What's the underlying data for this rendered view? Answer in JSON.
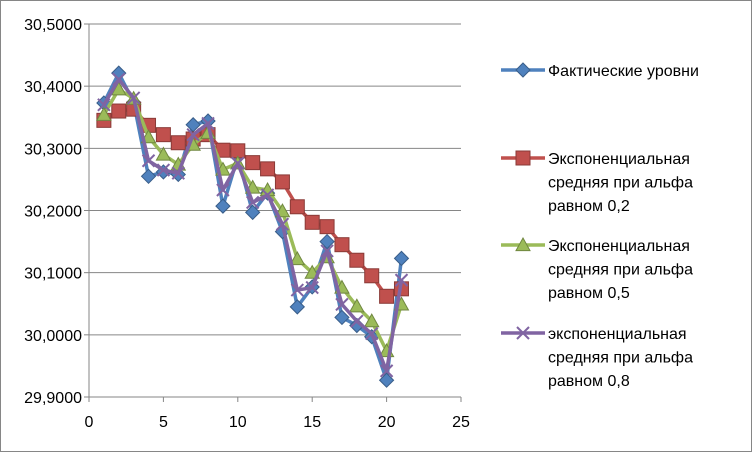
{
  "chart_data": {
    "type": "line",
    "xlim": [
      0,
      25
    ],
    "ylim": [
      29.9,
      30.5
    ],
    "x_ticks": [
      "0",
      "5",
      "10",
      "15",
      "20",
      "25"
    ],
    "y_ticks": [
      "29,9000",
      "30,0000",
      "30,1000",
      "30,2000",
      "30,3000",
      "30,4000",
      "30,5000"
    ],
    "grid": "horizontal",
    "legend_position": "right",
    "x": [
      1,
      2,
      3,
      4,
      5,
      6,
      7,
      8,
      9,
      10,
      11,
      12,
      13,
      14,
      15,
      16,
      17,
      18,
      19,
      20,
      21
    ],
    "series": [
      {
        "name": "Фактические уровни",
        "legend_lines": [
          "Фактические уровни"
        ],
        "color": "#4F81BD",
        "marker": "diamond",
        "values": [
          30.373,
          30.421,
          30.374,
          30.255,
          30.262,
          30.258,
          30.338,
          30.344,
          30.207,
          30.286,
          30.197,
          30.228,
          30.166,
          30.045,
          30.077,
          30.15,
          30.028,
          30.015,
          29.997,
          29.927,
          30.123
        ]
      },
      {
        "name": "Экспоненциальная средняя при альфа равном 0,2",
        "legend_lines": [
          "Экспоненциальная",
          "средняя при альфа",
          "равном 0,2"
        ],
        "color": "#C0504D",
        "marker": "square",
        "values": [
          30.345,
          30.36,
          30.363,
          30.337,
          30.322,
          30.309,
          30.315,
          30.322,
          30.297,
          30.296,
          30.277,
          30.267,
          30.246,
          30.206,
          30.181,
          30.174,
          30.145,
          30.12,
          30.095,
          30.062,
          30.074
        ]
      },
      {
        "name": "Экспоненциальная средняя при альфа равном 0,5",
        "legend_lines": [
          "Экспоненциальная",
          "средняя при альфа",
          "равном 0,5"
        ],
        "color": "#9BBB59",
        "marker": "triangle",
        "values": [
          30.354,
          30.395,
          30.38,
          30.318,
          30.29,
          30.274,
          30.306,
          30.325,
          30.266,
          30.276,
          30.237,
          30.233,
          30.199,
          30.122,
          30.1,
          30.125,
          30.076,
          30.046,
          30.022,
          29.974,
          30.049
        ]
      },
      {
        "name": "экспоненциальная средняя при альфа равном 0,8",
        "legend_lines": [
          "экспоненциальная",
          "средняя при альфа",
          "равном 0,8"
        ],
        "color": "#8064A2",
        "marker": "x",
        "values": [
          30.37,
          30.411,
          30.381,
          30.28,
          30.265,
          30.26,
          30.322,
          30.34,
          30.233,
          30.276,
          30.213,
          30.225,
          30.178,
          30.072,
          30.076,
          30.135,
          30.049,
          30.022,
          30.002,
          29.942,
          30.088
        ]
      }
    ]
  }
}
